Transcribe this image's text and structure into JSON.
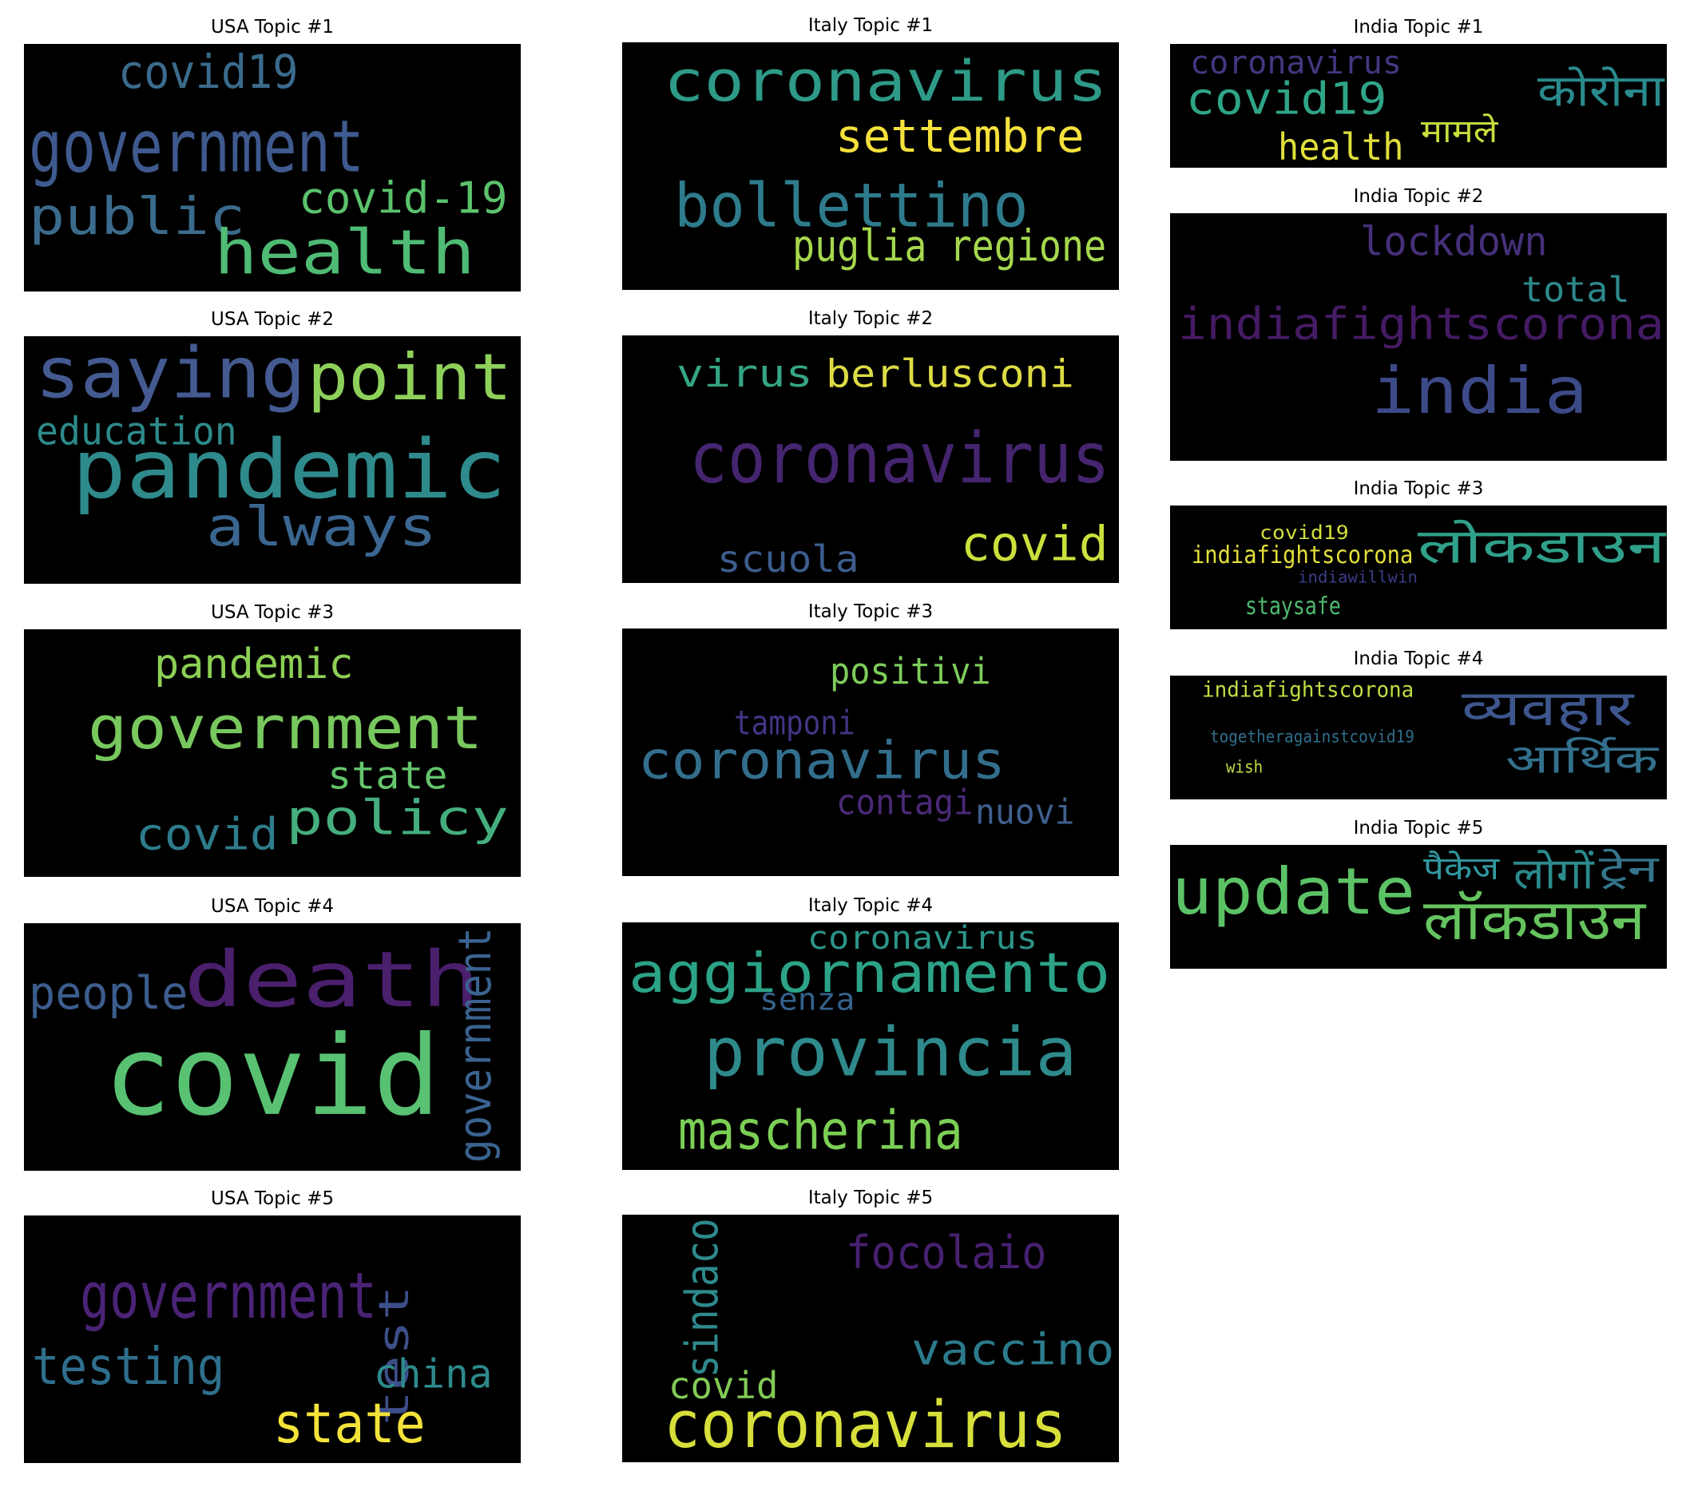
{
  "figure": {
    "background": "#ffffff",
    "cloud_background": "#000000",
    "panels": [
      {
        "id": "usa-1",
        "title": "USA Topic #1",
        "words": [
          {
            "text": "covid19",
            "color": "#3b6b8c"
          },
          {
            "text": "government",
            "color": "#3e5a8e"
          },
          {
            "text": "covid-19",
            "color": "#5bc26c"
          },
          {
            "text": "public",
            "color": "#3b6b8c"
          },
          {
            "text": "health",
            "color": "#4fbb74"
          }
        ]
      },
      {
        "id": "italy-1",
        "title": "Italy Topic #1",
        "words": [
          {
            "text": "coronavirus",
            "color": "#2e9a87"
          },
          {
            "text": "settembre",
            "color": "#f5e13c"
          },
          {
            "text": "bollettino",
            "color": "#2e7b8c"
          },
          {
            "text": "puglia regione",
            "color": "#a6d84e"
          }
        ]
      },
      {
        "id": "india-1",
        "title": "India Topic #1",
        "words": [
          {
            "text": "coronavirus",
            "color": "#453681"
          },
          {
            "text": "covid19",
            "color": "#2fa587"
          },
          {
            "text": "health",
            "color": "#e0df3a"
          },
          {
            "text": "मामले",
            "color": "#c8dd3e"
          },
          {
            "text": "कोरोना",
            "color": "#2a8a8c"
          }
        ]
      },
      {
        "id": "usa-2",
        "title": "USA Topic #2",
        "words": [
          {
            "text": "saying",
            "color": "#445a91"
          },
          {
            "text": "point",
            "color": "#8ed15a"
          },
          {
            "text": "education",
            "color": "#2e8a8a"
          },
          {
            "text": "pandemic",
            "color": "#2f8a8c"
          },
          {
            "text": "always",
            "color": "#3a6690"
          }
        ]
      },
      {
        "id": "italy-2",
        "title": "Italy Topic #2",
        "words": [
          {
            "text": "virus",
            "color": "#35a584"
          },
          {
            "text": "berlusconi",
            "color": "#dcdc44"
          },
          {
            "text": "coronavirus",
            "color": "#45256f"
          },
          {
            "text": "scuola",
            "color": "#3c5d8d"
          },
          {
            "text": "covid",
            "color": "#cbe03c"
          }
        ]
      },
      {
        "id": "india-2",
        "title": "India Topic #2",
        "words": [
          {
            "text": "lockdown",
            "color": "#46307a"
          },
          {
            "text": "total",
            "color": "#2e8a8c"
          },
          {
            "text": "indiafightscorona",
            "color": "#451b64"
          },
          {
            "text": "india",
            "color": "#3c4a88"
          }
        ]
      },
      {
        "id": "usa-3",
        "title": "USA Topic #3",
        "words": [
          {
            "text": "pandemic",
            "color": "#8ccf55"
          },
          {
            "text": "government",
            "color": "#78c85e"
          },
          {
            "text": "state",
            "color": "#64c56c"
          },
          {
            "text": "covid",
            "color": "#2e7c8c"
          },
          {
            "text": "policy",
            "color": "#45ae7d"
          }
        ]
      },
      {
        "id": "italy-3",
        "title": "Italy Topic #3",
        "words": [
          {
            "text": "positivi",
            "color": "#7ecd5c"
          },
          {
            "text": "tamponi",
            "color": "#433584"
          },
          {
            "text": "coronavirus",
            "color": "#336e8d"
          },
          {
            "text": "contagi",
            "color": "#4b2a78"
          },
          {
            "text": "nuovi",
            "color": "#3f5f8e"
          }
        ]
      },
      {
        "id": "india-3",
        "title": "India Topic #3",
        "words": [
          {
            "text": "covid19",
            "color": "#d2df3c"
          },
          {
            "text": "indiafightscorona",
            "color": "#e2e03a"
          },
          {
            "text": "लोकडाउन",
            "color": "#30a08a"
          },
          {
            "text": "indiawillwin",
            "color": "#3a3d88"
          },
          {
            "text": "staysafe",
            "color": "#4db96f"
          }
        ]
      },
      {
        "id": "india-4",
        "title": "India Topic #4",
        "words": [
          {
            "text": "indiafightscorona",
            "color": "#bddd44"
          },
          {
            "text": "व्यवहार",
            "color": "#3d568d"
          },
          {
            "text": "togetheragainstcovid19",
            "color": "#2e6f8c"
          },
          {
            "text": "आर्थिक",
            "color": "#33708c"
          },
          {
            "text": "wish",
            "color": "#c4dc44"
          }
        ]
      },
      {
        "id": "usa-4",
        "title": "USA Topic #4",
        "words": [
          {
            "text": "people",
            "color": "#3c5d8d"
          },
          {
            "text": "death",
            "color": "#4a1f6c"
          },
          {
            "text": "government",
            "color": "#3a6390"
          },
          {
            "text": "covid",
            "color": "#58c272"
          }
        ]
      },
      {
        "id": "italy-4",
        "title": "Italy Topic #4",
        "words": [
          {
            "text": "coronavirus",
            "color": "#2c9588"
          },
          {
            "text": "aggiornamento",
            "color": "#2ca387"
          },
          {
            "text": "senza",
            "color": "#34628c"
          },
          {
            "text": "provincia",
            "color": "#2f8a8c"
          },
          {
            "text": "mascherina",
            "color": "#7ccf55"
          }
        ]
      },
      {
        "id": "india-5",
        "title": "India Topic #5",
        "words": [
          {
            "text": "update",
            "color": "#5cc266"
          },
          {
            "text": "पैकेज",
            "color": "#3198a0"
          },
          {
            "text": "लोगों",
            "color": "#2b8a8c"
          },
          {
            "text": "ट्रेन",
            "color": "#35758c"
          },
          {
            "text": "लॉकडाउन",
            "color": "#66c45f"
          }
        ]
      },
      {
        "id": "usa-5",
        "title": "USA Topic #5",
        "words": [
          {
            "text": "government",
            "color": "#4a2376"
          },
          {
            "text": "testing",
            "color": "#2e6f8c"
          },
          {
            "text": "test",
            "color": "#3d4f8a"
          },
          {
            "text": "china",
            "color": "#2d8a8c"
          },
          {
            "text": "state",
            "color": "#f4e33a"
          }
        ]
      },
      {
        "id": "italy-5",
        "title": "Italy Topic #5",
        "words": [
          {
            "text": "sindaco",
            "color": "#2e8a8c"
          },
          {
            "text": "focolaio",
            "color": "#47206f"
          },
          {
            "text": "vaccino",
            "color": "#2c7b8c"
          },
          {
            "text": "covid",
            "color": "#83cb56"
          },
          {
            "text": "coronavirus",
            "color": "#d7df3b"
          }
        ]
      }
    ]
  }
}
